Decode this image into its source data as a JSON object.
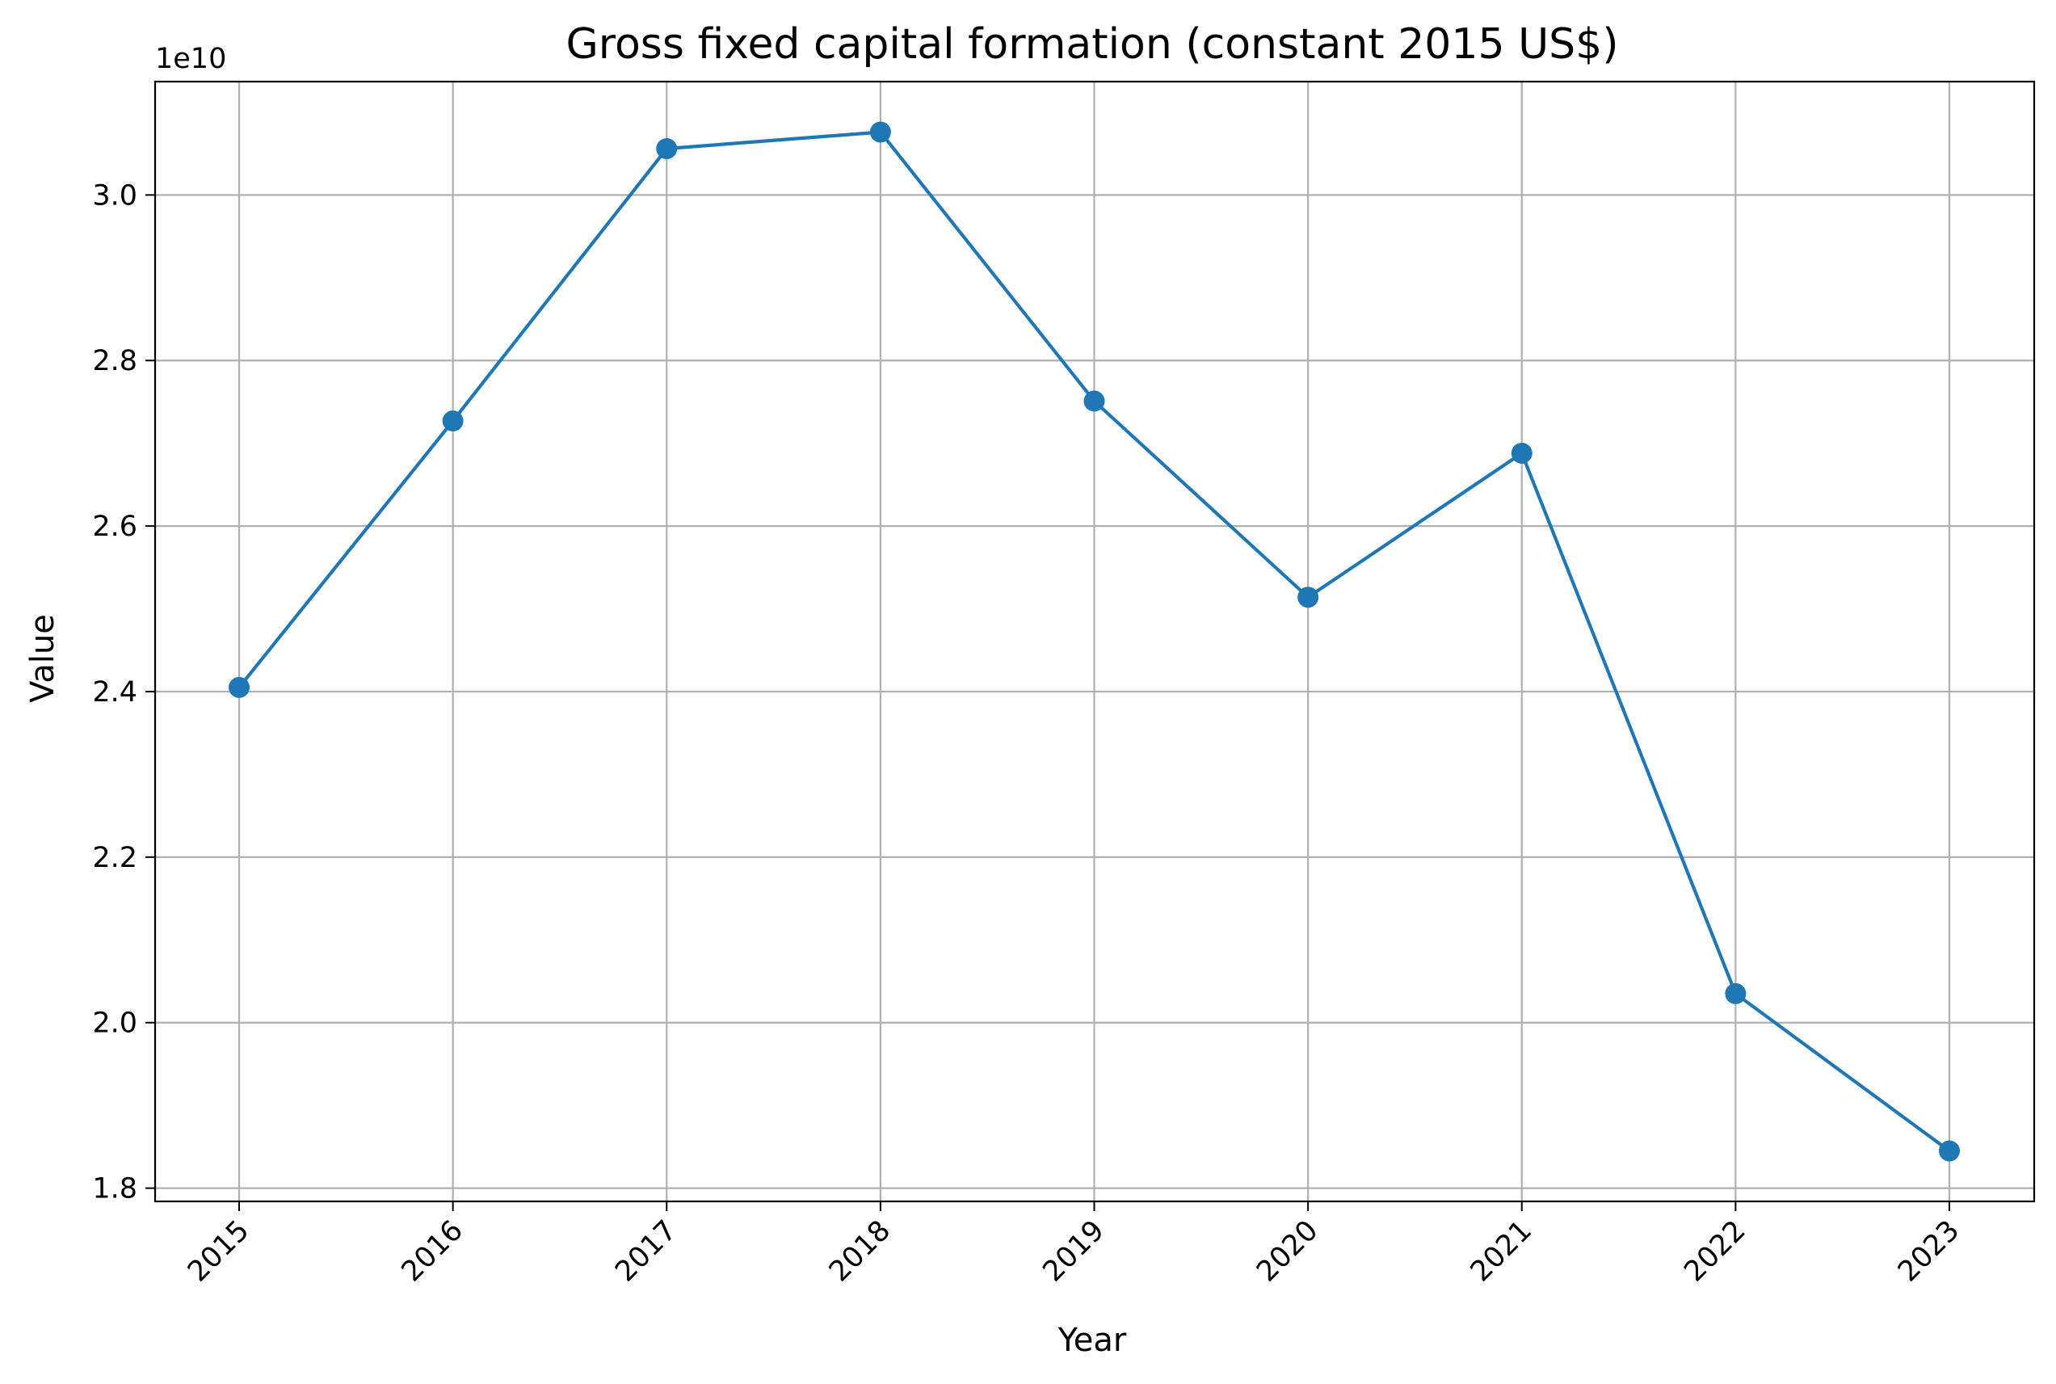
{
  "chart_data": {
    "type": "line",
    "title": "Gross fixed capital formation (constant 2015 US$)",
    "xlabel": "Year",
    "ylabel": "Value",
    "y_offset_label": "1e10",
    "x": [
      "2015",
      "2016",
      "2017",
      "2018",
      "2019",
      "2020",
      "2021",
      "2022",
      "2023"
    ],
    "series": [
      {
        "values": [
          24050000000,
          27270000000,
          30560000000,
          30760000000,
          27510000000,
          25140000000,
          26880000000,
          20350000000,
          18450000000
        ],
        "color": "#1f77b4",
        "marker": "circle"
      }
    ],
    "yticks": [
      1.8,
      2.0,
      2.2,
      2.4,
      2.6,
      2.8,
      3.0
    ],
    "yticks_scale": 10000000000,
    "ylim": [
      17840000000,
      31370000000
    ],
    "grid": true,
    "x_tick_rotation": -45
  }
}
